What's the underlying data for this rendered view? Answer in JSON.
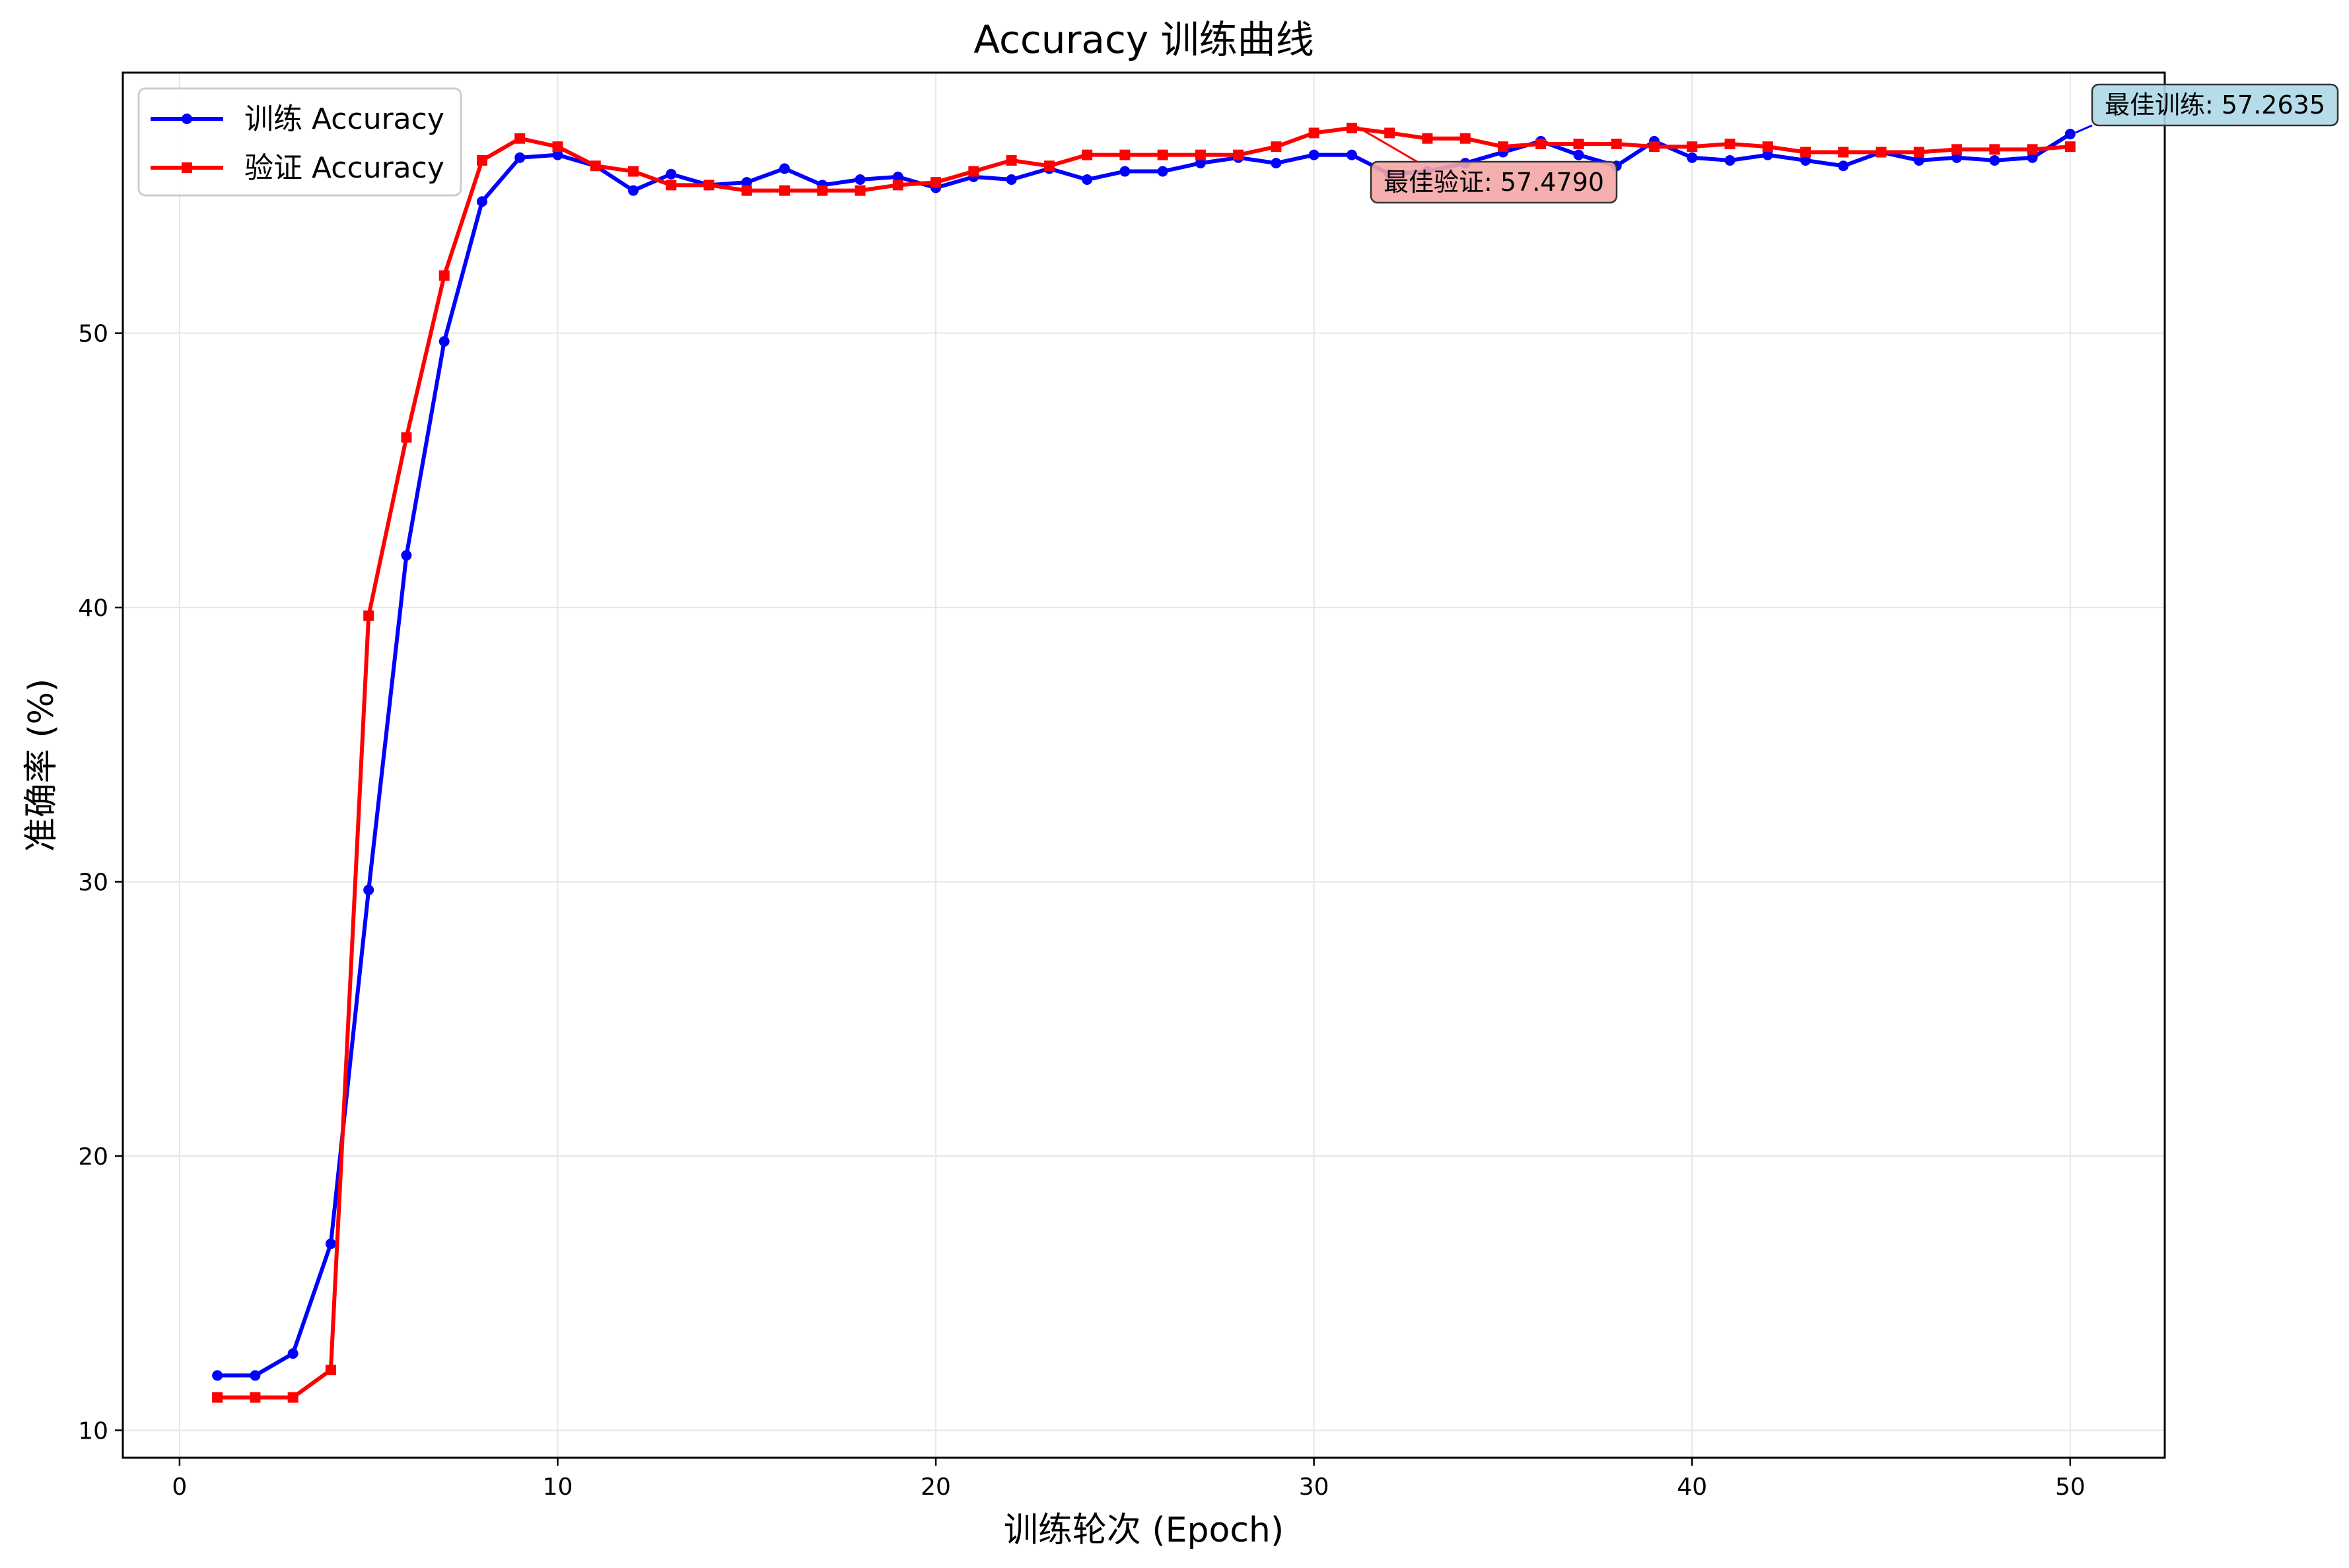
{
  "chart_data": {
    "type": "line",
    "title": "Accuracy 训练曲线",
    "xlabel": "训练轮次 (Epoch)",
    "ylabel": "准确率 (%)",
    "xlim": [
      -1.5,
      52.5
    ],
    "ylim": [
      9.0,
      59.5
    ],
    "xticks": [
      0,
      10,
      20,
      30,
      40,
      50
    ],
    "yticks": [
      10,
      20,
      30,
      40,
      50
    ],
    "grid": true,
    "legend_position": "upper-left",
    "x": [
      1,
      2,
      3,
      4,
      5,
      6,
      7,
      8,
      9,
      10,
      11,
      12,
      13,
      14,
      15,
      16,
      17,
      18,
      19,
      20,
      21,
      22,
      23,
      24,
      25,
      26,
      27,
      28,
      29,
      30,
      31,
      32,
      33,
      34,
      35,
      36,
      37,
      38,
      39,
      40,
      41,
      42,
      43,
      44,
      45,
      46,
      47,
      48,
      49,
      50
    ],
    "series": [
      {
        "name": "训练 Accuracy",
        "color": "#0000ff",
        "marker": "circle",
        "values": [
          12.0,
          12.0,
          12.8,
          16.8,
          29.7,
          41.9,
          49.7,
          54.8,
          56.4,
          56.5,
          56.1,
          55.2,
          55.8,
          55.4,
          55.5,
          56.0,
          55.4,
          55.6,
          55.7,
          55.3,
          55.7,
          55.6,
          56.0,
          55.6,
          55.9,
          55.9,
          56.2,
          56.4,
          56.2,
          56.5,
          56.5,
          55.8,
          55.9,
          56.2,
          56.6,
          57.0,
          56.5,
          56.1,
          57.0,
          56.4,
          56.3,
          56.5,
          56.3,
          56.1,
          56.6,
          56.3,
          56.4,
          56.3,
          56.4,
          57.26
        ]
      },
      {
        "name": "验证 Accuracy",
        "color": "#ff0000",
        "marker": "square",
        "values": [
          11.2,
          11.2,
          11.2,
          12.2,
          39.7,
          46.2,
          52.1,
          56.3,
          57.1,
          56.8,
          56.1,
          55.9,
          55.4,
          55.4,
          55.2,
          55.2,
          55.2,
          55.2,
          55.4,
          55.5,
          55.9,
          56.3,
          56.1,
          56.5,
          56.5,
          56.5,
          56.5,
          56.5,
          56.8,
          57.3,
          57.48,
          57.3,
          57.1,
          57.1,
          56.8,
          56.9,
          56.9,
          56.9,
          56.8,
          56.8,
          56.9,
          56.8,
          56.6,
          56.6,
          56.6,
          56.6,
          56.7,
          56.7,
          56.7,
          56.8
        ]
      }
    ],
    "annotations": [
      {
        "text": "最佳训练: 57.2635",
        "x": 50,
        "y": 57.2635,
        "color": "#0000ff",
        "box_color": "#add8e6"
      },
      {
        "text": "最佳验证: 57.4790",
        "x": 31,
        "y": 57.479,
        "color": "#ff0000",
        "box_color": "#f4a6a6"
      }
    ]
  }
}
